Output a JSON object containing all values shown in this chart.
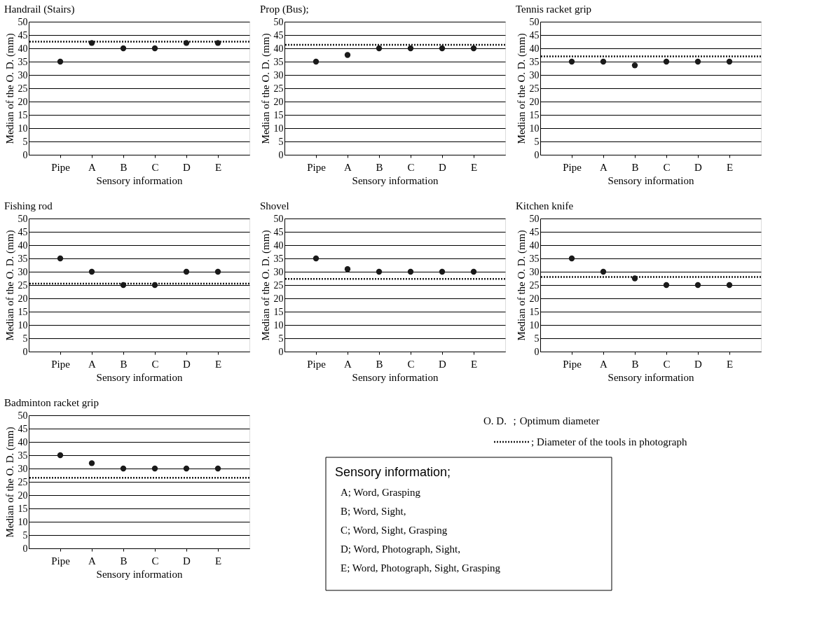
{
  "chart_data": [
    {
      "type": "scatter",
      "title": "Handrail (Stairs)",
      "xlabel": "Sensory information",
      "ylabel": "Median of the O. D. (mm)",
      "categories": [
        "Pipe",
        "A",
        "B",
        "C",
        "D",
        "E"
      ],
      "series": [
        {
          "color": "#1a1a1a",
          "values": [
            35,
            42,
            40,
            40,
            42,
            42
          ]
        }
      ],
      "ylim": [
        0,
        50
      ],
      "yticks": [
        0,
        5,
        10,
        15,
        20,
        25,
        30,
        35,
        40,
        45,
        50
      ],
      "grid": "y",
      "marker": "circle",
      "ref_lines": [
        {
          "axis": "y",
          "value": 42.5,
          "color": "#1a1a1a",
          "line_style": "dotted"
        }
      ]
    },
    {
      "type": "scatter",
      "title": "Prop (Bus);",
      "xlabel": "Sensory information",
      "ylabel": "Median of the O. D. (mm)",
      "categories": [
        "Pipe",
        "A",
        "B",
        "C",
        "D",
        "E"
      ],
      "series": [
        {
          "color": "#1a1a1a",
          "values": [
            35,
            37.5,
            40,
            40,
            40,
            40
          ]
        }
      ],
      "ylim": [
        0,
        50
      ],
      "yticks": [
        0,
        5,
        10,
        15,
        20,
        25,
        30,
        35,
        40,
        45,
        50
      ],
      "grid": "y",
      "marker": "circle",
      "ref_lines": [
        {
          "axis": "y",
          "value": 41.3,
          "color": "#1a1a1a",
          "line_style": "dotted"
        }
      ]
    },
    {
      "type": "scatter",
      "title": "Tennis racket grip",
      "xlabel": "Sensory information",
      "ylabel": "Median of the O. D. (mm)",
      "categories": [
        "Pipe",
        "A",
        "B",
        "C",
        "D",
        "E"
      ],
      "series": [
        {
          "color": "#1a1a1a",
          "values": [
            35,
            35,
            33.6,
            35,
            35,
            35
          ]
        }
      ],
      "ylim": [
        0,
        50
      ],
      "yticks": [
        0,
        5,
        10,
        15,
        20,
        25,
        30,
        35,
        40,
        45,
        50
      ],
      "grid": "y",
      "marker": "circle",
      "ref_lines": [
        {
          "axis": "y",
          "value": 37,
          "color": "#1a1a1a",
          "line_style": "dotted"
        }
      ]
    },
    {
      "type": "scatter",
      "title": "Fishing rod",
      "xlabel": "Sensory information",
      "ylabel": "Median of the O. D. (mm)",
      "categories": [
        "Pipe",
        "A",
        "B",
        "C",
        "D",
        "E"
      ],
      "series": [
        {
          "color": "#1a1a1a",
          "values": [
            35,
            30,
            25,
            25,
            30,
            30
          ]
        }
      ],
      "ylim": [
        0,
        50
      ],
      "yticks": [
        0,
        5,
        10,
        15,
        20,
        25,
        30,
        35,
        40,
        45,
        50
      ],
      "grid": "y",
      "marker": "circle",
      "ref_lines": [
        {
          "axis": "y",
          "value": 25.5,
          "color": "#1a1a1a",
          "line_style": "dotted"
        }
      ]
    },
    {
      "type": "scatter",
      "title": "Shovel",
      "xlabel": "Sensory information",
      "ylabel": "Median of the O. D. (mm)",
      "categories": [
        "Pipe",
        "A",
        "B",
        "C",
        "D",
        "E"
      ],
      "series": [
        {
          "color": "#1a1a1a",
          "values": [
            35,
            31,
            30,
            30,
            30,
            30
          ]
        }
      ],
      "ylim": [
        0,
        50
      ],
      "yticks": [
        0,
        5,
        10,
        15,
        20,
        25,
        30,
        35,
        40,
        45,
        50
      ],
      "grid": "y",
      "marker": "circle",
      "ref_lines": [
        {
          "axis": "y",
          "value": 27.3,
          "color": "#1a1a1a",
          "line_style": "dotted"
        }
      ]
    },
    {
      "type": "scatter",
      "title": "Kitchen knife",
      "xlabel": "Sensory information",
      "ylabel": "Median of the O. D. (mm)",
      "categories": [
        "Pipe",
        "A",
        "B",
        "C",
        "D",
        "E"
      ],
      "series": [
        {
          "color": "#1a1a1a",
          "values": [
            35,
            30,
            27.5,
            25,
            25,
            25
          ]
        }
      ],
      "ylim": [
        0,
        50
      ],
      "yticks": [
        0,
        5,
        10,
        15,
        20,
        25,
        30,
        35,
        40,
        45,
        50
      ],
      "grid": "y",
      "marker": "circle",
      "ref_lines": [
        {
          "axis": "y",
          "value": 28,
          "color": "#1a1a1a",
          "line_style": "dotted"
        }
      ]
    },
    {
      "type": "scatter",
      "title": "Badminton racket grip",
      "xlabel": "Sensory information",
      "ylabel": "Median of the O. D. (mm)",
      "categories": [
        "Pipe",
        "A",
        "B",
        "C",
        "D",
        "E"
      ],
      "series": [
        {
          "color": "#1a1a1a",
          "values": [
            35,
            32,
            30,
            30,
            30,
            30
          ]
        }
      ],
      "ylim": [
        0,
        50
      ],
      "yticks": [
        0,
        5,
        10,
        15,
        20,
        25,
        30,
        35,
        40,
        45,
        50
      ],
      "grid": "y",
      "marker": "circle",
      "ref_lines": [
        {
          "axis": "y",
          "value": 26.5,
          "color": "#1a1a1a",
          "line_style": "dotted"
        }
      ]
    },
    {
      "type": "other",
      "annotations": [
        "O. D. ；Optimum diameter",
        "; Diameter of the tools in photograph",
        "Sensory information;",
        "A; Word, Grasping",
        "B; Word, Sight,",
        "C; Word, Sight, Grasping",
        "D; Word, Photograph, Sight,",
        "E; Word, Photograph, Sight, Grasping"
      ]
    }
  ]
}
